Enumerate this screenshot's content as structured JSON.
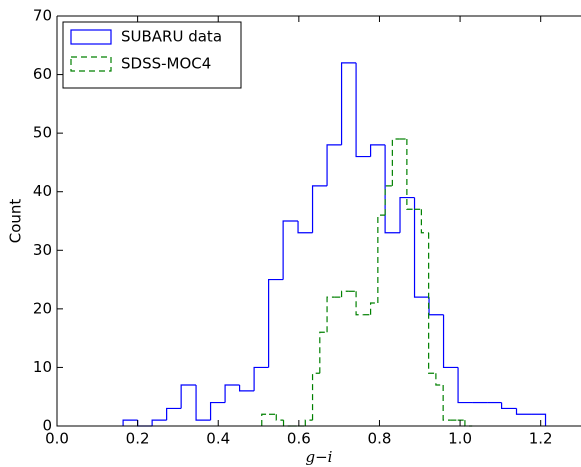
{
  "chart_data": {
    "type": "histogram",
    "xlabel": "g−i",
    "ylabel": "Count",
    "xlim": [
      0,
      1.3
    ],
    "ylim": [
      0,
      70
    ],
    "xticks": [
      {
        "value": 0,
        "label": "0.0"
      },
      {
        "value": 0.2,
        "label": "0.2"
      },
      {
        "value": 0.4,
        "label": "0.4"
      },
      {
        "value": 0.6,
        "label": "0.6"
      },
      {
        "value": 0.8,
        "label": "0.8"
      },
      {
        "value": 1.0,
        "label": "1.0"
      },
      {
        "value": 1.2,
        "label": "1.2"
      }
    ],
    "yticks": [
      0,
      10,
      20,
      30,
      40,
      50,
      60,
      70
    ],
    "grid": false,
    "legend": "upper left",
    "series": [
      {
        "name": "SUBARU data",
        "color": "#0000ff",
        "linestyle": "solid",
        "bins": [
          0.164,
          0.2,
          0.236,
          0.272,
          0.308,
          0.345,
          0.381,
          0.417,
          0.453,
          0.489,
          0.525,
          0.561,
          0.598,
          0.634,
          0.67,
          0.706,
          0.742,
          0.778,
          0.814,
          0.851,
          0.887,
          0.923,
          0.959,
          0.995,
          1.031,
          1.067,
          1.103,
          1.14,
          1.176,
          1.212
        ],
        "values": [
          1,
          0,
          1,
          3,
          7,
          1,
          4,
          7,
          6,
          10,
          25,
          35,
          33,
          41,
          48,
          62,
          46,
          48,
          33,
          39,
          22,
          19,
          10,
          4,
          4,
          4,
          3,
          2,
          2
        ]
      },
      {
        "name": "SDSS-MOC4",
        "color": "#008000",
        "linestyle": "dashed",
        "bins": [
          0.508,
          0.526,
          0.544,
          0.562,
          0.58,
          0.598,
          0.616,
          0.634,
          0.652,
          0.67,
          0.688,
          0.706,
          0.724,
          0.742,
          0.76,
          0.778,
          0.796,
          0.814,
          0.832,
          0.85,
          0.868,
          0.886,
          0.904,
          0.922,
          0.94,
          0.958,
          0.976,
          0.994,
          1.012,
          1.03
        ],
        "values": [
          2,
          2,
          1,
          0,
          0,
          0,
          1,
          9,
          16,
          22,
          22,
          23,
          23,
          19,
          19,
          21,
          36,
          41,
          49,
          49,
          37,
          37,
          33,
          9,
          7,
          1,
          1,
          1,
          0
        ]
      }
    ]
  }
}
